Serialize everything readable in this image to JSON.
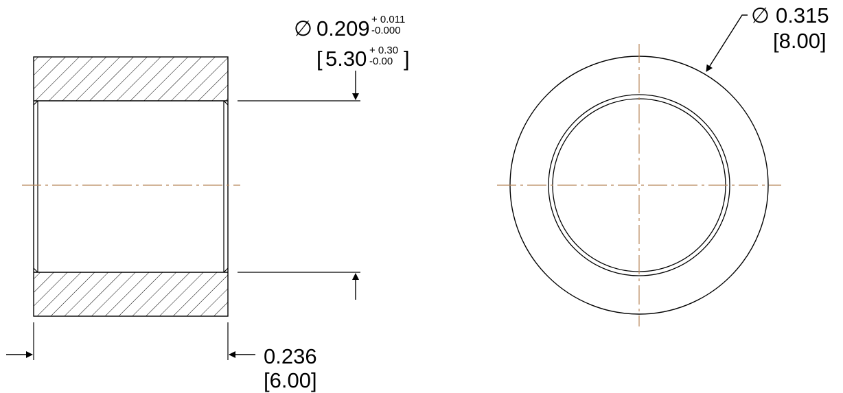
{
  "colors": {
    "outline": "#000000",
    "centerline": "#b8875a",
    "background": "#ffffff"
  },
  "symbols": {
    "diameter": "∅"
  },
  "dimensions": {
    "bore": {
      "nominal_in": "0.209",
      "upper_tol_in": "+ 0.011",
      "lower_tol_in": "-0.000",
      "open_bracket": "[",
      "close_bracket": "]",
      "nominal_mm": "5.30",
      "upper_tol_mm": "+ 0.30",
      "lower_tol_mm": "-0.00"
    },
    "outer_diameter": {
      "inch": "0.315",
      "mm": "[8.00]"
    },
    "length": {
      "inch": "0.236",
      "mm": "[6.00]"
    }
  }
}
